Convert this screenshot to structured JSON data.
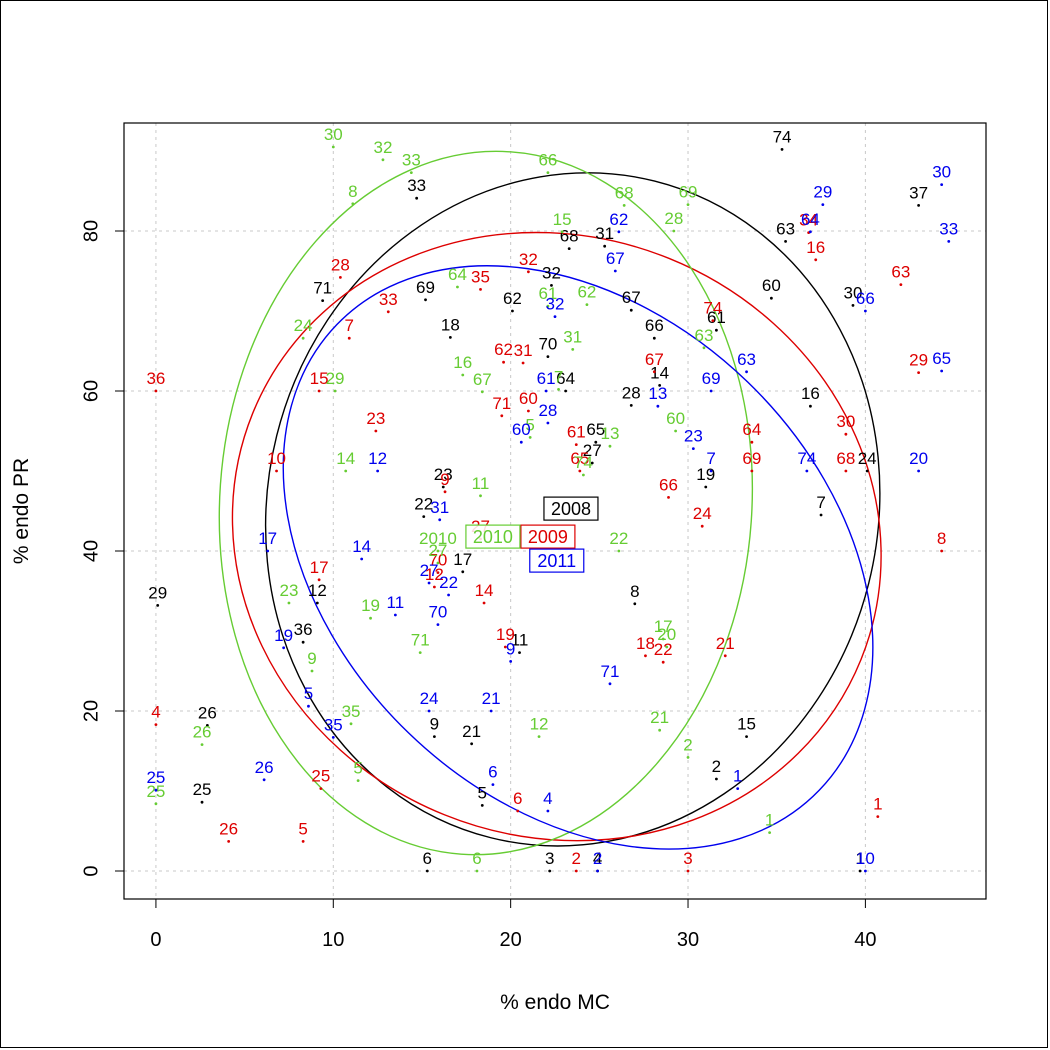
{
  "chart_data": {
    "type": "scatter",
    "title": "",
    "xlabel": "% endo MC",
    "ylabel": "% endo PR",
    "xlim": [
      -1.8,
      46.8
    ],
    "ylim": [
      -3.5,
      93.5
    ],
    "x_ticks": [
      0,
      10,
      20,
      30,
      40
    ],
    "y_ticks": [
      0,
      20,
      40,
      60,
      80
    ],
    "grid": true,
    "point_labels": "each point is marked by its numeric label",
    "series": [
      {
        "name": "2008",
        "color": "#000000",
        "points": [
          {
            "label": "74",
            "x": 35.3,
            "y": 90.2
          },
          {
            "label": "37",
            "x": 43.0,
            "y": 83.2
          },
          {
            "label": "33",
            "x": 14.7,
            "y": 84.1
          },
          {
            "label": "63",
            "x": 35.5,
            "y": 78.7
          },
          {
            "label": "68",
            "x": 23.3,
            "y": 77.8
          },
          {
            "label": "31",
            "x": 25.3,
            "y": 78.1
          },
          {
            "label": "32",
            "x": 22.3,
            "y": 73.2
          },
          {
            "label": "71",
            "x": 9.4,
            "y": 71.3
          },
          {
            "label": "69",
            "x": 15.2,
            "y": 71.4
          },
          {
            "label": "62",
            "x": 20.1,
            "y": 70.0
          },
          {
            "label": "60",
            "x": 34.7,
            "y": 71.6
          },
          {
            "label": "30",
            "x": 39.3,
            "y": 70.7
          },
          {
            "label": "67",
            "x": 26.8,
            "y": 70.1
          },
          {
            "label": "61",
            "x": 31.6,
            "y": 67.6
          },
          {
            "label": "18",
            "x": 16.6,
            "y": 66.7
          },
          {
            "label": "66",
            "x": 28.1,
            "y": 66.6
          },
          {
            "label": "70",
            "x": 22.1,
            "y": 64.3
          },
          {
            "label": "64",
            "x": 23.1,
            "y": 60.0
          },
          {
            "label": "14",
            "x": 28.4,
            "y": 60.7
          },
          {
            "label": "28",
            "x": 26.8,
            "y": 58.2
          },
          {
            "label": "16",
            "x": 36.9,
            "y": 58.1
          },
          {
            "label": "65",
            "x": 24.8,
            "y": 53.6
          },
          {
            "label": "27",
            "x": 24.6,
            "y": 51.0
          },
          {
            "label": "24",
            "x": 40.1,
            "y": 50.0
          },
          {
            "label": "19",
            "x": 31.0,
            "y": 48.0
          },
          {
            "label": "23",
            "x": 16.2,
            "y": 48.0
          },
          {
            "label": "22",
            "x": 15.1,
            "y": 44.3
          },
          {
            "label": "7",
            "x": 37.5,
            "y": 44.5
          },
          {
            "label": "17",
            "x": 17.3,
            "y": 37.4
          },
          {
            "label": "8",
            "x": 27.0,
            "y": 33.4
          },
          {
            "label": "12",
            "x": 9.1,
            "y": 33.5
          },
          {
            "label": "29",
            "x": 0.1,
            "y": 33.2
          },
          {
            "label": "36",
            "x": 8.3,
            "y": 28.6
          },
          {
            "label": "11",
            "x": 20.5,
            "y": 27.3
          },
          {
            "label": "26",
            "x": 2.9,
            "y": 18.2
          },
          {
            "label": "9",
            "x": 15.7,
            "y": 16.8
          },
          {
            "label": "21",
            "x": 17.8,
            "y": 15.9
          },
          {
            "label": "15",
            "x": 33.3,
            "y": 16.8
          },
          {
            "label": "2",
            "x": 31.6,
            "y": 11.5
          },
          {
            "label": "25",
            "x": 2.6,
            "y": 8.6
          },
          {
            "label": "5",
            "x": 18.4,
            "y": 8.2
          },
          {
            "label": "6",
            "x": 15.3,
            "y": 0.0
          },
          {
            "label": "3",
            "x": 22.2,
            "y": 0.0
          },
          {
            "label": "4",
            "x": 24.9,
            "y": 0.0
          },
          {
            "label": "1",
            "x": 39.7,
            "y": 0.0
          }
        ],
        "ellipse": {
          "cx": 23.5,
          "cy": 45.2,
          "rx": 17.2,
          "ry": 42.3,
          "rotation_deg": 14
        }
      },
      {
        "name": "2009",
        "color": "#dd0000",
        "points": [
          {
            "label": "34",
            "x": 36.8,
            "y": 79.8
          },
          {
            "label": "16",
            "x": 37.2,
            "y": 76.4
          },
          {
            "label": "28",
            "x": 10.4,
            "y": 74.2
          },
          {
            "label": "35",
            "x": 18.3,
            "y": 72.7
          },
          {
            "label": "32",
            "x": 21.0,
            "y": 74.9
          },
          {
            "label": "63",
            "x": 42.0,
            "y": 73.3
          },
          {
            "label": "33",
            "x": 13.1,
            "y": 69.9
          },
          {
            "label": "7",
            "x": 10.9,
            "y": 66.6
          },
          {
            "label": "74",
            "x": 31.4,
            "y": 68.8
          },
          {
            "label": "62",
            "x": 19.6,
            "y": 63.6
          },
          {
            "label": "31",
            "x": 20.7,
            "y": 63.5
          },
          {
            "label": "36",
            "x": 0.0,
            "y": 60.0
          },
          {
            "label": "15",
            "x": 9.2,
            "y": 60.0
          },
          {
            "label": "67",
            "x": 28.1,
            "y": 62.4
          },
          {
            "label": "29",
            "x": 43.0,
            "y": 62.3
          },
          {
            "label": "71",
            "x": 19.5,
            "y": 56.9
          },
          {
            "label": "60",
            "x": 21.0,
            "y": 57.5
          },
          {
            "label": "23",
            "x": 12.4,
            "y": 55.0
          },
          {
            "label": "30",
            "x": 38.9,
            "y": 54.6
          },
          {
            "label": "64",
            "x": 33.6,
            "y": 53.6
          },
          {
            "label": "61",
            "x": 23.7,
            "y": 53.3
          },
          {
            "label": "10",
            "x": 6.8,
            "y": 50.0
          },
          {
            "label": "65",
            "x": 23.9,
            "y": 50.0
          },
          {
            "label": "69",
            "x": 33.6,
            "y": 50.0
          },
          {
            "label": "68",
            "x": 38.9,
            "y": 50.0
          },
          {
            "label": "9",
            "x": 16.3,
            "y": 47.4
          },
          {
            "label": "66",
            "x": 28.9,
            "y": 46.7
          },
          {
            "label": "24",
            "x": 30.8,
            "y": 43.1
          },
          {
            "label": "8",
            "x": 44.3,
            "y": 40.0
          },
          {
            "label": "27",
            "x": 18.3,
            "y": 41.5
          },
          {
            "label": "17",
            "x": 9.2,
            "y": 36.4
          },
          {
            "label": "70",
            "x": 15.9,
            "y": 37.3
          },
          {
            "label": "12",
            "x": 15.7,
            "y": 35.5
          },
          {
            "label": "14",
            "x": 18.5,
            "y": 33.5
          },
          {
            "label": "19",
            "x": 19.7,
            "y": 28.0
          },
          {
            "label": "18",
            "x": 27.6,
            "y": 26.9
          },
          {
            "label": "22",
            "x": 28.6,
            "y": 26.1
          },
          {
            "label": "21",
            "x": 32.1,
            "y": 26.9
          },
          {
            "label": "4",
            "x": 0.0,
            "y": 18.3
          },
          {
            "label": "25",
            "x": 9.3,
            "y": 10.3
          },
          {
            "label": "6",
            "x": 20.4,
            "y": 7.5
          },
          {
            "label": "1",
            "x": 40.7,
            "y": 6.8
          },
          {
            "label": "5",
            "x": 8.3,
            "y": 3.7
          },
          {
            "label": "26",
            "x": 4.1,
            "y": 3.7
          },
          {
            "label": "2",
            "x": 23.7,
            "y": 0.0
          },
          {
            "label": "3",
            "x": 30.0,
            "y": 0.0
          }
        ],
        "ellipse": {
          "cx": 22.6,
          "cy": 41.8,
          "rx": 18.5,
          "ry": 37.5,
          "rotation_deg": 22
        }
      },
      {
        "name": "2010",
        "color": "#66cc33",
        "points": [
          {
            "label": "30",
            "x": 10.0,
            "y": 90.5
          },
          {
            "label": "32",
            "x": 12.8,
            "y": 88.9
          },
          {
            "label": "33",
            "x": 14.4,
            "y": 87.3
          },
          {
            "label": "66",
            "x": 22.1,
            "y": 87.3
          },
          {
            "label": "8",
            "x": 11.1,
            "y": 83.4
          },
          {
            "label": "68",
            "x": 26.4,
            "y": 83.2
          },
          {
            "label": "69",
            "x": 30.0,
            "y": 83.3
          },
          {
            "label": "15",
            "x": 22.9,
            "y": 79.9
          },
          {
            "label": "28",
            "x": 29.2,
            "y": 80.0
          },
          {
            "label": "64",
            "x": 17.0,
            "y": 73.0
          },
          {
            "label": "61",
            "x": 22.1,
            "y": 70.6
          },
          {
            "label": "62",
            "x": 24.3,
            "y": 70.8
          },
          {
            "label": "24",
            "x": 8.3,
            "y": 66.6
          },
          {
            "label": "63",
            "x": 30.9,
            "y": 65.4
          },
          {
            "label": "31",
            "x": 23.5,
            "y": 65.2
          },
          {
            "label": "16",
            "x": 17.3,
            "y": 62.0
          },
          {
            "label": "29",
            "x": 10.1,
            "y": 60.0
          },
          {
            "label": "67",
            "x": 18.4,
            "y": 59.9
          },
          {
            "label": "7",
            "x": 22.7,
            "y": 60.2
          },
          {
            "label": "60",
            "x": 29.3,
            "y": 55.0
          },
          {
            "label": "5",
            "x": 21.1,
            "y": 54.2
          },
          {
            "label": "13",
            "x": 25.6,
            "y": 53.1
          },
          {
            "label": "14",
            "x": 10.7,
            "y": 50.0
          },
          {
            "label": "74",
            "x": 24.1,
            "y": 49.5
          },
          {
            "label": "11",
            "x": 18.3,
            "y": 46.9
          },
          {
            "label": "22",
            "x": 26.1,
            "y": 40.0
          },
          {
            "label": "2010",
            "x": 15.9,
            "y": 40.0
          },
          {
            "label": "27",
            "x": 15.9,
            "y": 38.5
          },
          {
            "label": "23",
            "x": 7.5,
            "y": 33.5
          },
          {
            "label": "19",
            "x": 12.1,
            "y": 31.6
          },
          {
            "label": "17",
            "x": 28.6,
            "y": 29.0
          },
          {
            "label": "20",
            "x": 28.8,
            "y": 28.0
          },
          {
            "label": "71",
            "x": 14.9,
            "y": 27.3
          },
          {
            "label": "9",
            "x": 8.8,
            "y": 25.0
          },
          {
            "label": "35",
            "x": 11.0,
            "y": 18.4
          },
          {
            "label": "12",
            "x": 21.6,
            "y": 16.8
          },
          {
            "label": "21",
            "x": 28.4,
            "y": 17.6
          },
          {
            "label": "26",
            "x": 2.6,
            "y": 15.8
          },
          {
            "label": "2",
            "x": 30.0,
            "y": 14.2
          },
          {
            "label": "5",
            "x": 11.4,
            "y": 11.3
          },
          {
            "label": "25",
            "x": 0.0,
            "y": 8.4
          },
          {
            "label": "1",
            "x": 34.6,
            "y": 4.8
          },
          {
            "label": "6",
            "x": 18.1,
            "y": 0.0
          }
        ],
        "ellipse": {
          "cx": 18.6,
          "cy": 46.0,
          "rx": 15.0,
          "ry": 44.0,
          "rotation_deg": 4
        }
      },
      {
        "name": "2011",
        "color": "#0000ee",
        "points": [
          {
            "label": "30",
            "x": 44.3,
            "y": 85.8
          },
          {
            "label": "29",
            "x": 37.6,
            "y": 83.3
          },
          {
            "label": "64",
            "x": 36.9,
            "y": 79.9
          },
          {
            "label": "33",
            "x": 44.7,
            "y": 78.7
          },
          {
            "label": "62",
            "x": 26.1,
            "y": 79.9
          },
          {
            "label": "67",
            "x": 25.9,
            "y": 75.0
          },
          {
            "label": "66",
            "x": 40.0,
            "y": 70.0
          },
          {
            "label": "32",
            "x": 22.5,
            "y": 69.3
          },
          {
            "label": "65",
            "x": 44.3,
            "y": 62.5
          },
          {
            "label": "63",
            "x": 33.3,
            "y": 62.4
          },
          {
            "label": "69",
            "x": 31.3,
            "y": 60.0
          },
          {
            "label": "61",
            "x": 22.0,
            "y": 60.0
          },
          {
            "label": "13",
            "x": 28.3,
            "y": 58.1
          },
          {
            "label": "28",
            "x": 22.1,
            "y": 56.0
          },
          {
            "label": "60",
            "x": 20.6,
            "y": 53.6
          },
          {
            "label": "23",
            "x": 30.3,
            "y": 52.8
          },
          {
            "label": "20",
            "x": 43.0,
            "y": 50.0
          },
          {
            "label": "74",
            "x": 36.7,
            "y": 50.0
          },
          {
            "label": "7",
            "x": 31.3,
            "y": 50.0
          },
          {
            "label": "12",
            "x": 12.5,
            "y": 50.0
          },
          {
            "label": "31",
            "x": 16.0,
            "y": 43.9
          },
          {
            "label": "17",
            "x": 6.3,
            "y": 40.0
          },
          {
            "label": "14",
            "x": 11.6,
            "y": 39.0
          },
          {
            "label": "27",
            "x": 15.4,
            "y": 36.0
          },
          {
            "label": "22",
            "x": 16.5,
            "y": 34.5
          },
          {
            "label": "11",
            "x": 13.5,
            "y": 32.0
          },
          {
            "label": "70",
            "x": 15.9,
            "y": 30.8
          },
          {
            "label": "19",
            "x": 7.2,
            "y": 27.9
          },
          {
            "label": "9",
            "x": 20.0,
            "y": 26.2
          },
          {
            "label": "71",
            "x": 25.6,
            "y": 23.4
          },
          {
            "label": "5",
            "x": 8.6,
            "y": 20.6
          },
          {
            "label": "24",
            "x": 15.4,
            "y": 20.0
          },
          {
            "label": "21",
            "x": 18.9,
            "y": 20.0
          },
          {
            "label": "35",
            "x": 10.0,
            "y": 16.7
          },
          {
            "label": "26",
            "x": 6.1,
            "y": 11.4
          },
          {
            "label": "6",
            "x": 19.0,
            "y": 10.8
          },
          {
            "label": "25",
            "x": 0.0,
            "y": 10.1
          },
          {
            "label": "1",
            "x": 32.8,
            "y": 10.3
          },
          {
            "label": "4",
            "x": 22.1,
            "y": 7.5
          },
          {
            "label": "2",
            "x": 24.9,
            "y": 0.0
          },
          {
            "label": "10",
            "x": 40.0,
            "y": 0.0
          }
        ],
        "ellipse": {
          "cx": 23.8,
          "cy": 39.2,
          "rx": 18.9,
          "ry": 30.5,
          "rotation_deg": 44
        }
      }
    ],
    "legend_boxes": [
      {
        "label": "2008",
        "color": "#000000",
        "x": 23.4,
        "y": 45.3
      },
      {
        "label": "2009",
        "color": "#dd0000",
        "x": 22.1,
        "y": 41.8
      },
      {
        "label": "2010",
        "color": "#66cc33",
        "x": 19.0,
        "y": 41.8
      },
      {
        "label": "2011",
        "color": "#0000ee",
        "x": 22.6,
        "y": 38.8
      }
    ]
  }
}
